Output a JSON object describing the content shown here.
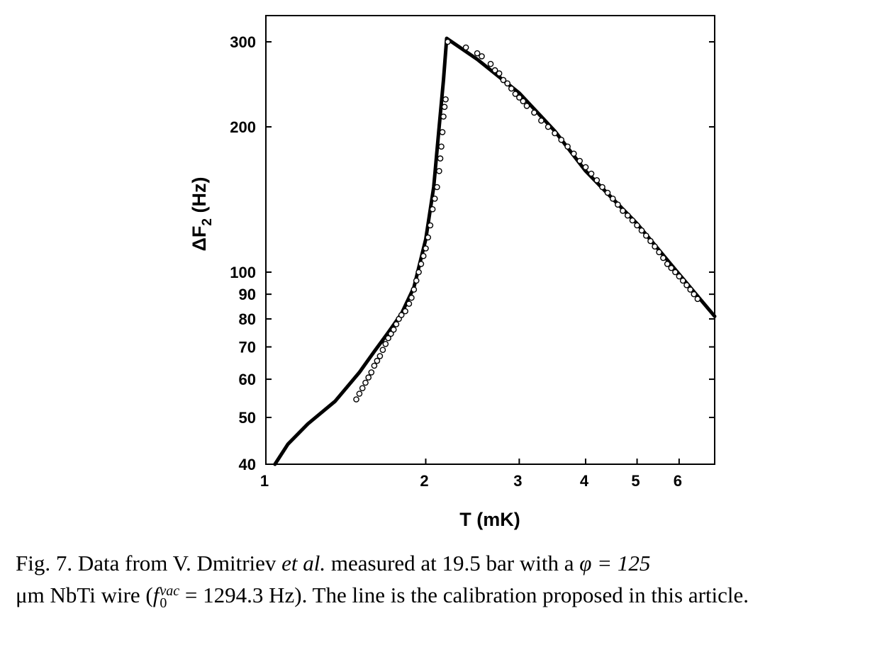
{
  "chart_data": {
    "type": "scatter",
    "xlabel": "T (mK)",
    "ylabel": "ΔF2 (Hz)",
    "xscale": "log",
    "yscale": "log",
    "xlim": [
      1.0,
      7.0
    ],
    "ylim": [
      40,
      340
    ],
    "x_ticks": [
      1,
      2,
      3,
      4,
      5,
      6
    ],
    "y_ticks": [
      40,
      50,
      60,
      70,
      80,
      90,
      100,
      200,
      300
    ],
    "grid": false,
    "legend": "none",
    "series": [
      {
        "kind": "line",
        "color": "#000000",
        "points": [
          [
            1.04,
            40
          ],
          [
            1.1,
            44
          ],
          [
            1.2,
            48.5
          ],
          [
            1.35,
            54
          ],
          [
            1.5,
            62
          ],
          [
            1.6,
            68.5
          ],
          [
            1.7,
            75
          ],
          [
            1.8,
            82
          ],
          [
            1.9,
            93
          ],
          [
            2.0,
            117
          ],
          [
            2.07,
            150
          ],
          [
            2.12,
            200
          ],
          [
            2.16,
            250
          ],
          [
            2.19,
            305
          ],
          [
            2.5,
            276
          ],
          [
            3.0,
            235
          ],
          [
            3.5,
            196
          ],
          [
            4.0,
            162
          ],
          [
            5.0,
            126
          ],
          [
            6.0,
            99
          ],
          [
            7.0,
            81
          ]
        ]
      },
      {
        "kind": "scatter",
        "marker": "open-circle",
        "color": "#000000",
        "points": [
          [
            1.48,
            54.5
          ],
          [
            1.5,
            56
          ],
          [
            1.52,
            57.5
          ],
          [
            1.54,
            59
          ],
          [
            1.56,
            60.5
          ],
          [
            1.58,
            62
          ],
          [
            1.6,
            64
          ],
          [
            1.62,
            65.5
          ],
          [
            1.64,
            67
          ],
          [
            1.66,
            69
          ],
          [
            1.68,
            71
          ],
          [
            1.7,
            73
          ],
          [
            1.72,
            74.5
          ],
          [
            1.74,
            76
          ],
          [
            1.76,
            78
          ],
          [
            1.78,
            80
          ],
          [
            1.8,
            81.5
          ],
          [
            1.83,
            83
          ],
          [
            1.86,
            86
          ],
          [
            1.88,
            88.5
          ],
          [
            1.9,
            92
          ],
          [
            1.92,
            96
          ],
          [
            1.94,
            100
          ],
          [
            1.96,
            104
          ],
          [
            1.98,
            108
          ],
          [
            2.0,
            112
          ],
          [
            2.02,
            118
          ],
          [
            2.04,
            125
          ],
          [
            2.06,
            135
          ],
          [
            2.08,
            142
          ],
          [
            2.1,
            150
          ],
          [
            2.12,
            162
          ],
          [
            2.13,
            172
          ],
          [
            2.14,
            182
          ],
          [
            2.15,
            195
          ],
          [
            2.16,
            210
          ],
          [
            2.17,
            220
          ],
          [
            2.18,
            228
          ],
          [
            2.2,
            300
          ],
          [
            2.38,
            292
          ],
          [
            2.5,
            284
          ],
          [
            2.55,
            280
          ],
          [
            2.65,
            270
          ],
          [
            2.7,
            262
          ],
          [
            2.75,
            258
          ],
          [
            2.8,
            250
          ],
          [
            2.85,
            246
          ],
          [
            2.9,
            240
          ],
          [
            2.95,
            234
          ],
          [
            3.0,
            230
          ],
          [
            3.05,
            226
          ],
          [
            3.1,
            221
          ],
          [
            3.2,
            214
          ],
          [
            3.3,
            206
          ],
          [
            3.4,
            200
          ],
          [
            3.5,
            194
          ],
          [
            3.6,
            188
          ],
          [
            3.7,
            182
          ],
          [
            3.8,
            176
          ],
          [
            3.9,
            170
          ],
          [
            4.0,
            165
          ],
          [
            4.1,
            160
          ],
          [
            4.2,
            155
          ],
          [
            4.3,
            150
          ],
          [
            4.4,
            146
          ],
          [
            4.5,
            142
          ],
          [
            4.6,
            138
          ],
          [
            4.7,
            134
          ],
          [
            4.8,
            131
          ],
          [
            4.9,
            128
          ],
          [
            5.0,
            125
          ],
          [
            5.1,
            122
          ],
          [
            5.2,
            119
          ],
          [
            5.3,
            116
          ],
          [
            5.4,
            113
          ],
          [
            5.5,
            110
          ],
          [
            5.6,
            107
          ],
          [
            5.7,
            104
          ],
          [
            5.8,
            102
          ],
          [
            5.9,
            100
          ],
          [
            6.0,
            98
          ],
          [
            6.1,
            96
          ],
          [
            6.2,
            94
          ],
          [
            6.3,
            92
          ],
          [
            6.4,
            90
          ],
          [
            6.5,
            88
          ]
        ]
      }
    ]
  },
  "caption": {
    "fig_label": "Fig. 7.",
    "text_1": " Data from V. Dmitriev ",
    "et_al": "et al.",
    "text_2": " measured at 19.5 bar with a ",
    "phi_eq": "φ = 125",
    "text_3": "μm NbTi wire (",
    "f0_symbol": "f",
    "f0_sub": "0",
    "f0_sup": "vac",
    "text_4": " = 1294.3 Hz).  The line is the calibration proposed in this article."
  }
}
